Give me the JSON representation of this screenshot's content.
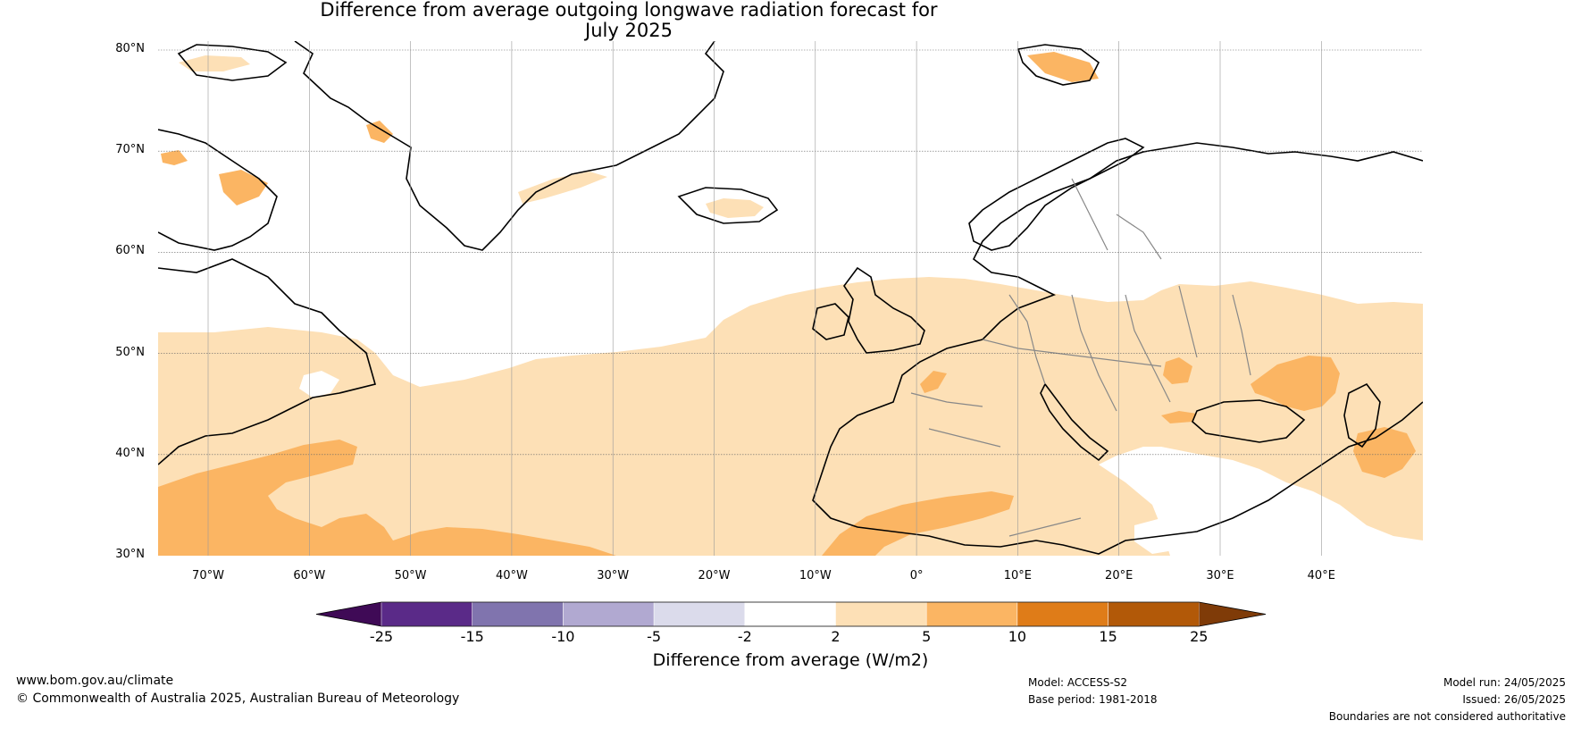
{
  "map": {
    "title_line1": "Difference from average outgoing longwave radiation forecast for",
    "title_line2": "July 2025",
    "lat_labels": [
      "80°N",
      "70°N",
      "60°N",
      "50°N",
      "40°N",
      "30°N"
    ],
    "lon_labels": [
      "70°W",
      "60°W",
      "50°W",
      "40°W",
      "30°W",
      "20°W",
      "10°W",
      "0°",
      "10°E",
      "20°E",
      "30°E",
      "40°E"
    ],
    "extent": {
      "lon_min": -75,
      "lon_max": 50,
      "lat_min": 30,
      "lat_max": 81
    }
  },
  "colorbar": {
    "title": "Difference from average (W/m2)",
    "ticks": [
      "-25",
      "-15",
      "-10",
      "-5",
      "-2",
      "2",
      "5",
      "10",
      "15",
      "25"
    ],
    "colors": [
      "#3f0a56",
      "#5a2a88",
      "#8074ae",
      "#b1a9d1",
      "#dbdbeb",
      "#ffffff",
      "#fde0b6",
      "#fbb563",
      "#df7c18",
      "#b25908",
      "#7f3b08"
    ]
  },
  "footer": {
    "website": "www.bom.gov.au/climate",
    "copyright": "© Commonwealth of Australia 2025, Australian Bureau of Meteorology",
    "model": "Model: ACCESS-S2",
    "base_period": "Base period: 1981-2018",
    "model_run": "Model run: 24/05/2025",
    "issued": "Issued: 26/05/2025",
    "disclaimer": "Boundaries are not considered authoritative"
  }
}
